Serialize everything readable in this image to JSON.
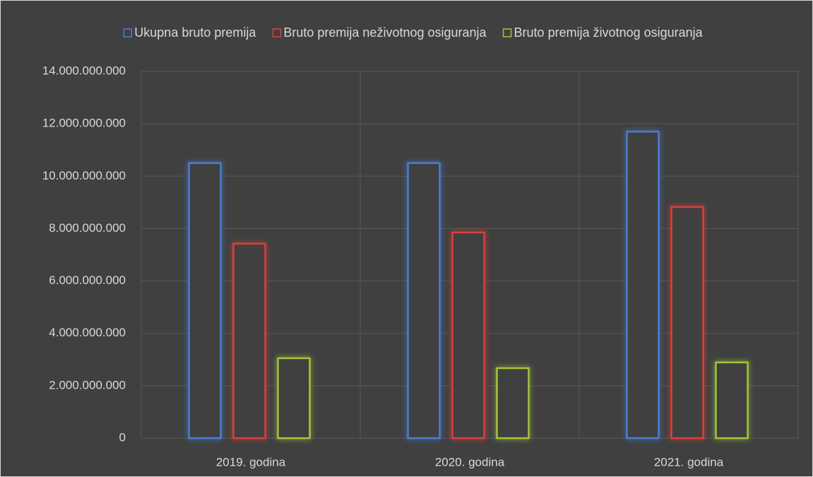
{
  "chart_data": {
    "type": "bar",
    "categories": [
      "2019. godina",
      "2020. godina",
      "2021. godina"
    ],
    "series": [
      {
        "name": "Ukupna bruto premija",
        "color": "#4a7fd0",
        "values": [
          10500000000,
          10500000000,
          11700000000
        ]
      },
      {
        "name": "Bruto premija neživotnog osiguranja",
        "color": "#d9413a",
        "values": [
          7420000000,
          7850000000,
          8820000000
        ]
      },
      {
        "name": "Bruto premija životnog osiguranja",
        "color": "#a3c43a",
        "values": [
          3050000000,
          2670000000,
          2890000000
        ]
      }
    ],
    "ylim": [
      0,
      14000000000
    ],
    "yticks": [
      0,
      {
        "value": 2000000000,
        "label": "2.000.000.000"
      },
      {
        "value": 4000000000,
        "label": "4.000.000.000"
      },
      {
        "value": 6000000000,
        "label": "6.000.000.000"
      },
      {
        "value": 8000000000,
        "label": "8.000.000.000"
      },
      {
        "value": 10000000000,
        "label": "10.000.000.000"
      },
      {
        "value": 12000000000,
        "label": "12.000.000.000"
      },
      {
        "value": 14000000000,
        "label": "14.000.000.000"
      }
    ],
    "grid": true,
    "legend": "top"
  }
}
